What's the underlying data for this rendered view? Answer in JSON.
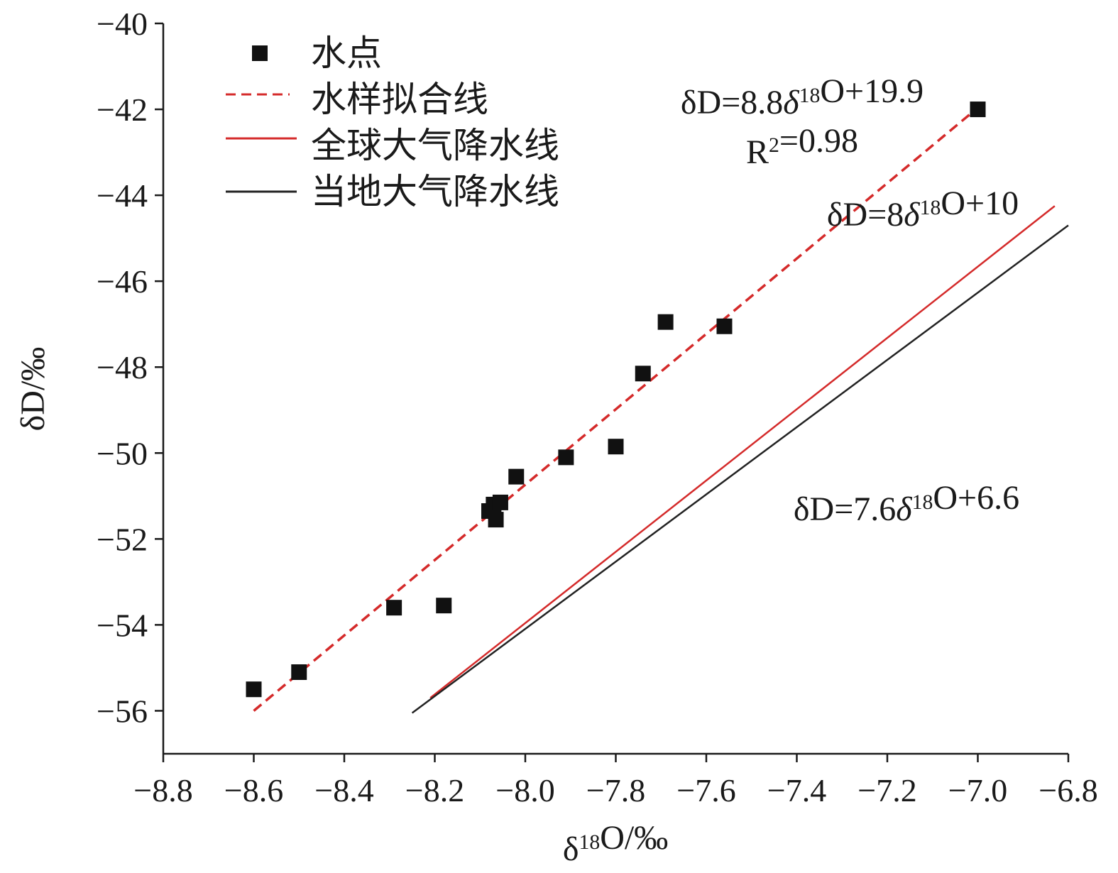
{
  "chart_data": {
    "type": "scatter",
    "xlabel": "δ18O/‰",
    "ylabel": "δD/‰",
    "xlim": [
      -8.8,
      -6.8
    ],
    "ylim": [
      -57,
      -40
    ],
    "x_ticks": [
      "−8.8",
      "−8.6",
      "−8.4",
      "−8.2",
      "−8.0",
      "−7.8",
      "−7.6",
      "−7.4",
      "−7.2",
      "−7.0",
      "−6.8"
    ],
    "y_ticks": [
      "−40",
      "−42",
      "−44",
      "−46",
      "−48",
      "−50",
      "−52",
      "−54",
      "−56"
    ],
    "grid": false,
    "legend_position": "top-left",
    "series": [
      {
        "name": "水点",
        "kind": "scatter",
        "color": "#111111",
        "points": [
          {
            "x": -8.6,
            "y": -55.5
          },
          {
            "x": -8.5,
            "y": -55.1
          },
          {
            "x": -8.29,
            "y": -53.6
          },
          {
            "x": -8.18,
            "y": -53.55
          },
          {
            "x": -8.08,
            "y": -51.35
          },
          {
            "x": -8.07,
            "y": -51.2
          },
          {
            "x": -8.065,
            "y": -51.55
          },
          {
            "x": -8.055,
            "y": -51.15
          },
          {
            "x": -8.02,
            "y": -50.55
          },
          {
            "x": -7.91,
            "y": -50.1
          },
          {
            "x": -7.8,
            "y": -49.85
          },
          {
            "x": -7.74,
            "y": -48.15
          },
          {
            "x": -7.69,
            "y": -46.95
          },
          {
            "x": -7.56,
            "y": -47.05
          },
          {
            "x": -7.0,
            "y": -42.0
          }
        ]
      },
      {
        "name": "水样拟合线",
        "kind": "line",
        "style": "dashed",
        "color": "#d42a2a",
        "points": [
          {
            "x": -8.6,
            "y": -56.0
          },
          {
            "x": -7.01,
            "y": -42.05
          }
        ]
      },
      {
        "name": "全球大气降水线",
        "kind": "line",
        "style": "solid",
        "color": "#d42a2a",
        "points": [
          {
            "x": -8.21,
            "y": -55.7
          },
          {
            "x": -6.83,
            "y": -44.25
          }
        ]
      },
      {
        "name": "当地大气降水线",
        "kind": "line",
        "style": "solid",
        "color": "#222222",
        "points": [
          {
            "x": -8.25,
            "y": -56.05
          },
          {
            "x": -6.8,
            "y": -44.7
          }
        ]
      }
    ],
    "annotations": [
      {
        "id": "fit-eq",
        "text": "δD=8.8δ18O+19.9"
      },
      {
        "id": "fit-r2",
        "text": "R2=0.98"
      },
      {
        "id": "gmwl-eq",
        "text": "δD=8δ18O+10"
      },
      {
        "id": "lmwl-eq",
        "text": "δD=7.6δ18O+6.6"
      }
    ]
  }
}
